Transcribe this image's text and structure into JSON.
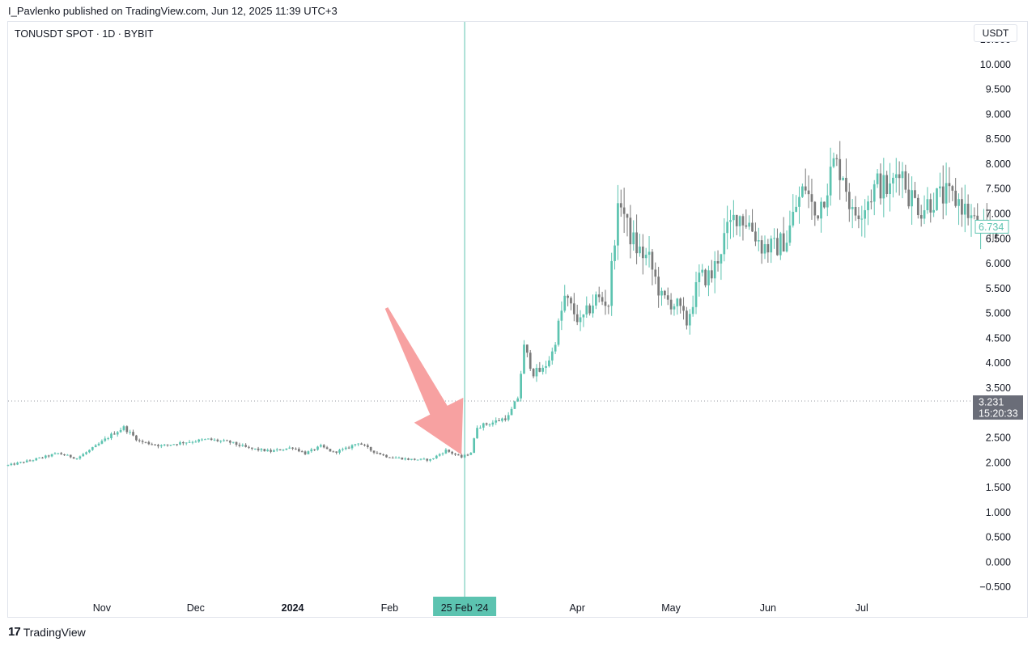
{
  "header": {
    "published": "I_Pavlenko published on TradingView.com, Jun 12, 2025 11:39 UTC+3"
  },
  "symbol": "TONUSDT SPOT · 1D · BYBIT",
  "unit": "USDT",
  "footer": {
    "brand": "TradingView",
    "logo_icon": "tradingview-logo-icon"
  },
  "colors": {
    "up": "#5cc3b0",
    "down": "#7a7a7a",
    "crosshair": "#5cc3b0",
    "arrow": "#f7a1a1"
  },
  "chart_data": {
    "type": "candlestick",
    "y_ticks": [
      "10.500",
      "10.000",
      "9.500",
      "9.000",
      "8.500",
      "8.000",
      "7.500",
      "7.000",
      "6.500",
      "6.000",
      "5.500",
      "5.000",
      "4.500",
      "4.000",
      "3.500",
      "3.000",
      "2.500",
      "2.000",
      "1.500",
      "1.000",
      "0.500",
      "0.000",
      "−0.500"
    ],
    "ylim": [
      -0.7,
      10.85
    ],
    "x_ticks": [
      {
        "label": "Nov",
        "date": "2023-11-01",
        "bold": false
      },
      {
        "label": "Dec",
        "date": "2023-12-01",
        "bold": false
      },
      {
        "label": "2024",
        "date": "2024-01-01",
        "bold": true
      },
      {
        "label": "Feb",
        "date": "2024-02-01",
        "bold": false
      },
      {
        "label": "Apr",
        "date": "2024-04-01",
        "bold": false
      },
      {
        "label": "May",
        "date": "2024-05-01",
        "bold": false
      },
      {
        "label": "Jun",
        "date": "2024-06-01",
        "bold": false
      },
      {
        "label": "Jul",
        "date": "2024-07-01",
        "bold": false
      }
    ],
    "xlim": [
      "2023-10-02",
      "2024-08-05"
    ],
    "crosshair": {
      "date_label": "25 Feb '24",
      "date": "2024-02-25",
      "price": 3.231,
      "price_label": "3.231",
      "countdown": "15:20:33"
    },
    "last_price": {
      "value": 6.734,
      "label": "6.734"
    },
    "annotation": {
      "type": "arrow",
      "color": "#f7a1a1",
      "tail": {
        "date": "2024-01-31",
        "price": 5.1
      },
      "head": {
        "date": "2024-02-24",
        "price": 2.15
      }
    },
    "price_path": [
      {
        "date": "2023-10-02",
        "price": 1.94
      },
      {
        "date": "2023-10-10",
        "price": 2.05
      },
      {
        "date": "2023-10-18",
        "price": 2.18
      },
      {
        "date": "2023-10-24",
        "price": 2.08
      },
      {
        "date": "2023-10-30",
        "price": 2.32
      },
      {
        "date": "2023-11-04",
        "price": 2.55
      },
      {
        "date": "2023-11-08",
        "price": 2.7
      },
      {
        "date": "2023-11-13",
        "price": 2.42
      },
      {
        "date": "2023-11-20",
        "price": 2.33
      },
      {
        "date": "2023-11-27",
        "price": 2.4
      },
      {
        "date": "2023-12-05",
        "price": 2.46
      },
      {
        "date": "2023-12-12",
        "price": 2.4
      },
      {
        "date": "2023-12-18",
        "price": 2.28
      },
      {
        "date": "2023-12-25",
        "price": 2.22
      },
      {
        "date": "2024-01-01",
        "price": 2.3
      },
      {
        "date": "2024-01-05",
        "price": 2.18
      },
      {
        "date": "2024-01-10",
        "price": 2.32
      },
      {
        "date": "2024-01-14",
        "price": 2.2
      },
      {
        "date": "2024-01-18",
        "price": 2.27
      },
      {
        "date": "2024-01-22",
        "price": 2.4
      },
      {
        "date": "2024-01-26",
        "price": 2.24
      },
      {
        "date": "2024-01-31",
        "price": 2.12
      },
      {
        "date": "2024-02-07",
        "price": 2.06
      },
      {
        "date": "2024-02-14",
        "price": 2.05
      },
      {
        "date": "2024-02-19",
        "price": 2.24
      },
      {
        "date": "2024-02-24",
        "price": 2.1
      },
      {
        "date": "2024-02-27",
        "price": 2.2
      },
      {
        "date": "2024-02-29",
        "price": 2.72
      },
      {
        "date": "2024-03-05",
        "price": 2.8
      },
      {
        "date": "2024-03-10",
        "price": 2.92
      },
      {
        "date": "2024-03-13",
        "price": 3.3
      },
      {
        "date": "2024-03-15",
        "price": 4.3
      },
      {
        "date": "2024-03-18",
        "price": 3.8
      },
      {
        "date": "2024-03-21",
        "price": 3.85
      },
      {
        "date": "2024-03-24",
        "price": 4.2
      },
      {
        "date": "2024-03-28",
        "price": 5.3
      },
      {
        "date": "2024-04-02",
        "price": 4.8
      },
      {
        "date": "2024-04-07",
        "price": 5.3
      },
      {
        "date": "2024-04-11",
        "price": 5.2
      },
      {
        "date": "2024-04-13",
        "price": 6.6
      },
      {
        "date": "2024-04-15",
        "price": 7.3
      },
      {
        "date": "2024-04-17",
        "price": 6.7
      },
      {
        "date": "2024-04-20",
        "price": 6.3
      },
      {
        "date": "2024-04-24",
        "price": 6.05
      },
      {
        "date": "2024-04-28",
        "price": 5.3
      },
      {
        "date": "2024-05-03",
        "price": 5.15
      },
      {
        "date": "2024-05-06",
        "price": 4.8
      },
      {
        "date": "2024-05-10",
        "price": 5.7
      },
      {
        "date": "2024-05-14",
        "price": 5.75
      },
      {
        "date": "2024-05-18",
        "price": 6.5
      },
      {
        "date": "2024-05-22",
        "price": 7.0
      },
      {
        "date": "2024-05-26",
        "price": 6.8
      },
      {
        "date": "2024-05-30",
        "price": 6.35
      },
      {
        "date": "2024-06-03",
        "price": 6.3
      },
      {
        "date": "2024-06-07",
        "price": 6.5
      },
      {
        "date": "2024-06-10",
        "price": 7.15
      },
      {
        "date": "2024-06-13",
        "price": 7.55
      },
      {
        "date": "2024-06-16",
        "price": 6.95
      },
      {
        "date": "2024-06-19",
        "price": 7.4
      },
      {
        "date": "2024-06-22",
        "price": 8.0
      },
      {
        "date": "2024-06-25",
        "price": 7.85
      },
      {
        "date": "2024-06-28",
        "price": 6.95
      },
      {
        "date": "2024-07-02",
        "price": 7.2
      },
      {
        "date": "2024-07-06",
        "price": 7.6
      },
      {
        "date": "2024-07-10",
        "price": 7.45
      },
      {
        "date": "2024-07-13",
        "price": 8.0
      },
      {
        "date": "2024-07-16",
        "price": 7.4
      },
      {
        "date": "2024-07-20",
        "price": 7.1
      },
      {
        "date": "2024-07-24",
        "price": 7.3
      },
      {
        "date": "2024-07-28",
        "price": 7.35
      },
      {
        "date": "2024-08-01",
        "price": 7.25
      },
      {
        "date": "2024-08-04",
        "price": 7.0
      },
      {
        "date": "2024-08-08",
        "price": 6.6
      },
      {
        "date": "2024-08-13",
        "price": 6.7
      }
    ]
  }
}
